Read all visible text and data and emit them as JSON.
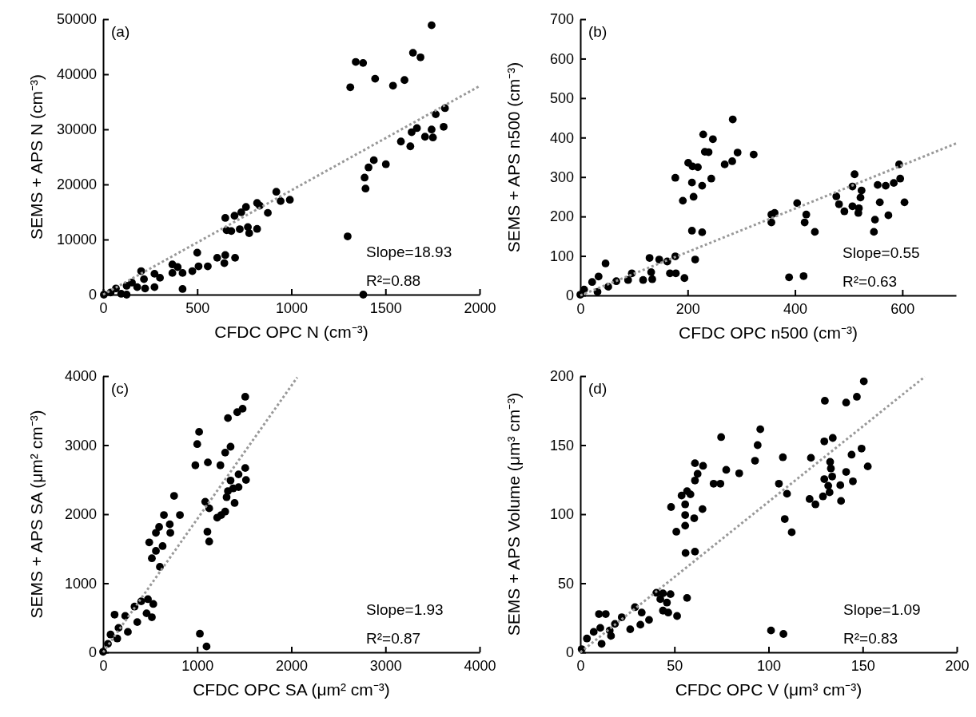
{
  "chart_data": [
    {
      "type": "scatter",
      "xlabel": "CFDC OPC N (cm⁻³)",
      "ylabel": "SEMS + APS N (cm⁻³)",
      "annotations": [
        "(a)",
        "Slope=18.93",
        "R²=0.88"
      ],
      "xlim": [
        0,
        2000
      ],
      "ylim": [
        0,
        50000
      ],
      "xticks": [
        0,
        500,
        1000,
        1500,
        2000
      ],
      "yticks": [
        0,
        10000,
        20000,
        30000,
        40000,
        50000
      ],
      "series": [
        {
          "marker": "circle",
          "color": "#000000",
          "x": [
            1745,
            1646,
            1686,
            1342,
            1381,
            1313,
            1445,
            1540,
            1601,
            1816,
            1767,
            1809,
            1745,
            1752,
            1667,
            1639,
            1582,
            1632,
            1710,
            1438,
            1410,
            1502,
            1389,
            1394,
            1299,
            1382,
            920,
            943,
            992,
            818,
            832,
            875,
            759,
            734,
            698,
            649,
            656,
            681,
            726,
            769,
            776,
            818,
            500,
            649,
            606,
            644,
            701,
            556,
            507,
            474,
            422,
            422,
            368,
            396,
            368,
            273,
            302,
            202,
            217,
            153,
            125,
            273,
            68,
            40,
            4,
            125,
            96,
            181,
            223
          ],
          "values": [
            48900,
            43900,
            43070,
            42240,
            42050,
            37640,
            39190,
            37930,
            38950,
            33850,
            32740,
            30460,
            29970,
            28520,
            30220,
            29490,
            27790,
            26920,
            28660,
            24400,
            23090,
            23670,
            21240,
            19250,
            10570,
            0,
            18670,
            16980,
            17220,
            16640,
            16150,
            14840,
            15910,
            14940,
            14310,
            13920,
            11690,
            11540,
            11880,
            12270,
            11160,
            11930,
            7610,
            7180,
            6690,
            5720,
            6690,
            5140,
            5140,
            4270,
            3930,
            1020,
            5480,
            5000,
            3930,
            3780,
            3060,
            4270,
            2810,
            2180,
            1600,
            1360,
            1120,
            390,
            0,
            0,
            150,
            1360,
            1120
          ]
        },
        {
          "type": "line",
          "color": "#999999",
          "line_style": "dotted",
          "x": [
            0,
            2000
          ],
          "values": [
            0,
            37860
          ]
        }
      ]
    },
    {
      "type": "scatter",
      "xlabel": "CFDC OPC n500 (cm⁻³)",
      "ylabel": "SEMS + APS n500 (cm⁻³)",
      "annotations": [
        "(b)",
        "Slope=0.55",
        "R²=0.63"
      ],
      "xlim": [
        0,
        700
      ],
      "ylim": [
        0,
        700
      ],
      "xticks": [
        0,
        200,
        400,
        600
      ],
      "yticks": [
        0,
        100,
        200,
        300,
        400,
        500,
        600,
        700
      ],
      "series": [
        {
          "marker": "circle",
          "color": "#000000",
          "x": [
            284,
            229,
            247,
            232,
            239,
            293,
            323,
            269,
            283,
            201,
            209,
            219,
            177,
            208,
            227,
            244,
            211,
            191,
            208,
            227,
            214,
            594,
            511,
            507,
            524,
            522,
            477,
            482,
            492,
            507,
            519,
            518,
            554,
            569,
            584,
            596,
            604,
            558,
            549,
            574,
            547,
            404,
            421,
            418,
            437,
            356,
            362,
            356,
            389,
            416,
            129,
            147,
            177,
            162,
            167,
            178,
            194,
            132,
            134,
            96,
            117,
            89,
            47,
            34,
            22,
            67,
            52,
            7,
            0,
            32
          ],
          "values": [
            446,
            408,
            396,
            364,
            363,
            362,
            357,
            332,
            340,
            336,
            327,
            325,
            298,
            286,
            278,
            296,
            250,
            240,
            164,
            160,
            91,
            332,
            307,
            276,
            266,
            248,
            251,
            231,
            213,
            226,
            221,
            209,
            280,
            278,
            285,
            296,
            236,
            236,
            192,
            203,
            161,
            234,
            205,
            185,
            161,
            205,
            209,
            185,
            46,
            49,
            95,
            91,
            99,
            86,
            56,
            56,
            44,
            59,
            41,
            56,
            39,
            39,
            81,
            48,
            34,
            36,
            22,
            15,
            2,
            9
          ]
        },
        {
          "type": "line",
          "color": "#999999",
          "line_style": "dotted",
          "x": [
            0,
            700
          ],
          "values": [
            0,
            385
          ]
        }
      ]
    },
    {
      "type": "scatter",
      "xlabel": "CFDC OPC SA (μm² cm⁻³)",
      "ylabel": "SEMS + APS SA (μm² cm⁻³)",
      "annotations": [
        "(c)",
        "Slope=1.93",
        "R²=0.87"
      ],
      "xlim": [
        0,
        4000
      ],
      "ylim": [
        0,
        4000
      ],
      "xticks": [
        0,
        1000,
        2000,
        3000,
        4000
      ],
      "yticks": [
        0,
        1000,
        2000,
        3000,
        4000
      ],
      "series": [
        {
          "marker": "circle",
          "color": "#000000",
          "x": [
            1510,
            1482,
            1425,
            1326,
            1020,
            1000,
            980,
            1113,
            1246,
            1297,
            1354,
            1510,
            1439,
            1518,
            1354,
            1382,
            1439,
            1326,
            1312,
            1397,
            1085,
            1127,
            1297,
            1255,
            1212,
            1108,
            1127,
            1028,
            1099,
            754,
            646,
            816,
            708,
            714,
            595,
            561,
            490,
            561,
            632,
            518,
            603,
            476,
            533,
            405,
            334,
            462,
            518,
            235,
            122,
            363,
            263,
            164,
            79,
            51,
            0,
            150
          ],
          "values": [
            3700,
            3527,
            3477,
            3392,
            3192,
            3015,
            2708,
            2750,
            2708,
            2892,
            2977,
            2669,
            2577,
            2496,
            2488,
            2373,
            2392,
            2335,
            2246,
            2162,
            2181,
            2085,
            2038,
            1988,
            1950,
            1746,
            1604,
            269,
            85,
            2265,
            1988,
            1988,
            1854,
            1731,
            1815,
            1731,
            1592,
            1469,
            1538,
            1362,
            1238,
            769,
            700,
            738,
            662,
            565,
            508,
            527,
            546,
            438,
            296,
            354,
            258,
            123,
            8,
            200
          ]
        },
        {
          "type": "line",
          "color": "#999999",
          "line_style": "dotted",
          "x": [
            0,
            2062
          ],
          "values": [
            0,
            3980
          ]
        }
      ]
    },
    {
      "type": "scatter",
      "xlabel": "CFDC OPC V (μm³ cm⁻³)",
      "ylabel": "SEMS + APS Volume (μm³ cm⁻³)",
      "annotations": [
        "(d)",
        "Slope=1.09",
        "R²=0.83"
      ],
      "xlim": [
        0,
        200
      ],
      "ylim": [
        0,
        200
      ],
      "xticks": [
        0,
        50,
        100,
        150,
        200
      ],
      "yticks": [
        0,
        50,
        100,
        150,
        200
      ],
      "series": [
        {
          "marker": "circle",
          "color": "#000000",
          "x": [
            150.6,
            146.9,
            141.2,
            129.9,
            129.6,
            134.1,
            149.4,
            144.1,
            152.7,
            132.7,
            133.1,
            133.8,
            129.6,
            131.7,
            132.4,
            128.9,
            122.5,
            141.2,
            144.8,
            138.1,
            138.5,
            121.8,
            124.9,
            107.6,
            105.5,
            109.8,
            108.6,
            112.3,
            101.3,
            107.9,
            95.6,
            94.2,
            92.8,
            74.8,
            77.5,
            84.4,
            70.8,
            74.4,
            60.9,
            65.2,
            62.3,
            60.9,
            56.7,
            53.8,
            58.5,
            55.7,
            48.2,
            64.9,
            55.7,
            60.5,
            55.7,
            51.0,
            55.9,
            60.9,
            56.7,
            40.4,
            43.9,
            47.9,
            42.5,
            46.0,
            43.9,
            46.7,
            51.4,
            29.0,
            32.6,
            36.5,
            31.9,
            26.5,
            22.0,
            18.4,
            9.9,
            13.5,
            10.6,
            15.6,
            16.3,
            7.1,
            3.5,
            11.3,
            0.7
          ],
          "values": [
            196.2,
            185.0,
            180.8,
            182.1,
            152.7,
            155.2,
            147.5,
            143.1,
            134.6,
            137.9,
            133.1,
            127.3,
            125.4,
            120.6,
            115.8,
            112.9,
            140.8,
            130.6,
            123.8,
            121.0,
            109.6,
            111.0,
            107.1,
            141.2,
            122.1,
            114.8,
            96.5,
            86.9,
            15.8,
            13.3,
            161.5,
            150.0,
            138.7,
            155.8,
            132.1,
            129.6,
            122.1,
            122.1,
            136.9,
            135.0,
            129.2,
            124.4,
            116.7,
            113.5,
            114.4,
            107.1,
            105.2,
            103.7,
            99.4,
            97.1,
            91.7,
            87.3,
            71.9,
            72.9,
            39.4,
            43.1,
            42.7,
            42.1,
            38.5,
            36.0,
            30.2,
            28.8,
            26.3,
            32.7,
            28.8,
            23.5,
            20.0,
            16.7,
            25.4,
            20.6,
            27.7,
            27.7,
            17.7,
            15.8,
            11.9,
            14.8,
            10.0,
            6.2,
            2.3
          ]
        },
        {
          "type": "line",
          "color": "#999999",
          "line_style": "dotted",
          "x": [
            0,
            183
          ],
          "values": [
            0,
            199.5
          ]
        }
      ]
    }
  ]
}
